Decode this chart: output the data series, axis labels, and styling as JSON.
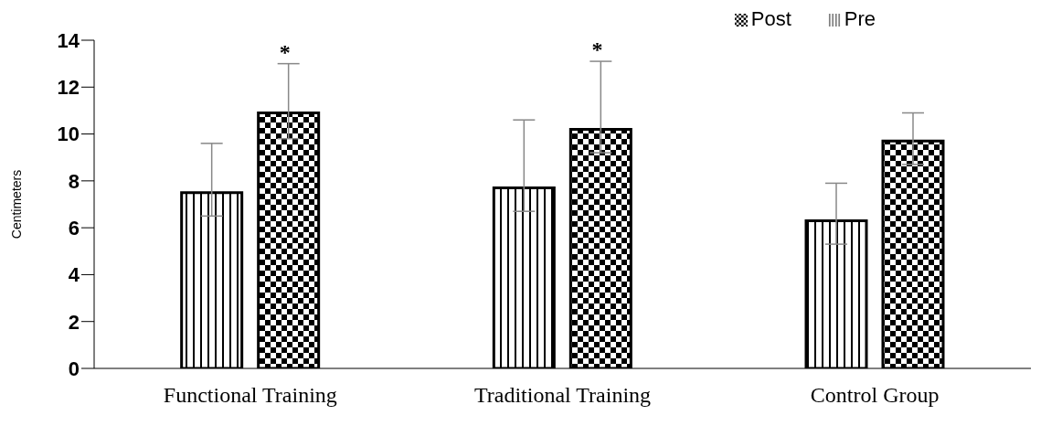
{
  "chart_data": {
    "type": "bar",
    "ylabel": "Centimeters",
    "categories": [
      "Functional Training",
      "Traditional Training",
      "Control Group"
    ],
    "series": [
      {
        "name": "Pre",
        "color": "#000000",
        "values": [
          7.5,
          7.7,
          6.3
        ],
        "errors": [
          [
            6.5,
            9.6
          ],
          [
            6.7,
            10.6
          ],
          [
            5.3,
            7.9
          ]
        ]
      },
      {
        "name": "Post",
        "color": "#000000",
        "values": [
          10.9,
          10.2,
          9.7
        ],
        "errors": [
          [
            9.8,
            13.0
          ],
          [
            9.2,
            13.1
          ],
          [
            8.7,
            10.9
          ]
        ]
      }
    ],
    "ylim": [
      0,
      14
    ],
    "yticks": [
      0,
      2,
      4,
      6,
      8,
      10,
      12,
      14
    ],
    "legend": "top right",
    "annotations": [
      "*",
      "*"
    ]
  }
}
